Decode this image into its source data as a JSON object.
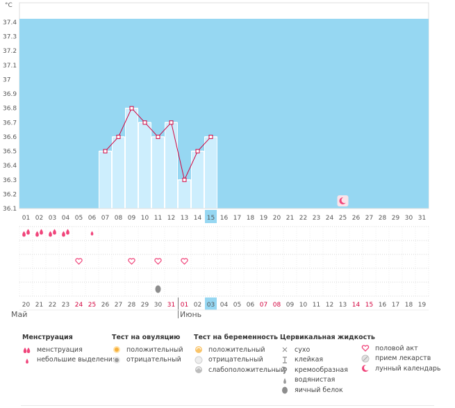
{
  "axis": {
    "unit": "°C",
    "yticks": [
      "37.4",
      "37.3",
      "37.2",
      "37.1",
      "37",
      "36.9",
      "36.8",
      "36.7",
      "36.6",
      "36.5",
      "36.4",
      "36.3",
      "36.2",
      "36.1"
    ]
  },
  "cycle_days": [
    "01",
    "02",
    "03",
    "04",
    "05",
    "06",
    "07",
    "08",
    "09",
    "10",
    "11",
    "12",
    "13",
    "14",
    "15",
    "16",
    "17",
    "18",
    "19",
    "20",
    "21",
    "22",
    "23",
    "24",
    "25",
    "26",
    "27",
    "28",
    "29",
    "30",
    "31"
  ],
  "current_day_index": 14,
  "dates": [
    {
      "d": "20",
      "red": false
    },
    {
      "d": "21",
      "red": false
    },
    {
      "d": "22",
      "red": false
    },
    {
      "d": "23",
      "red": false
    },
    {
      "d": "24",
      "red": true
    },
    {
      "d": "25",
      "red": true
    },
    {
      "d": "26",
      "red": false
    },
    {
      "d": "27",
      "red": false
    },
    {
      "d": "28",
      "red": false
    },
    {
      "d": "29",
      "red": false
    },
    {
      "d": "30",
      "red": false
    },
    {
      "d": "31",
      "red": true
    },
    {
      "d": "01",
      "red": true
    },
    {
      "d": "02",
      "red": false
    },
    {
      "d": "03",
      "red": false
    },
    {
      "d": "04",
      "red": false
    },
    {
      "d": "05",
      "red": false
    },
    {
      "d": "06",
      "red": false
    },
    {
      "d": "07",
      "red": true
    },
    {
      "d": "08",
      "red": true
    },
    {
      "d": "09",
      "red": false
    },
    {
      "d": "10",
      "red": false
    },
    {
      "d": "11",
      "red": false
    },
    {
      "d": "12",
      "red": false
    },
    {
      "d": "13",
      "red": false
    },
    {
      "d": "14",
      "red": true
    },
    {
      "d": "15",
      "red": true
    },
    {
      "d": "16",
      "red": false
    },
    {
      "d": "17",
      "red": false
    },
    {
      "d": "18",
      "red": false
    },
    {
      "d": "19",
      "red": false
    }
  ],
  "months": {
    "may": "Май",
    "june": "Июнь"
  },
  "chart_data": {
    "type": "line",
    "ylabel": "°C",
    "ylim": [
      36.1,
      37.4
    ],
    "x": [
      7,
      8,
      9,
      10,
      11,
      12,
      13,
      14,
      15
    ],
    "values": [
      36.5,
      36.6,
      36.8,
      36.7,
      36.6,
      36.7,
      36.3,
      36.5,
      36.6
    ],
    "moon_day": 25
  },
  "marks": {
    "menstruation": [
      1,
      2,
      3,
      4
    ],
    "spotting": [
      6
    ],
    "intercourse": [
      5,
      9,
      11,
      13
    ],
    "cervical_eggwhite": [
      11
    ]
  },
  "legend": {
    "menstr": {
      "title": "Менструация",
      "items": [
        "менструация",
        "небольшие выделения"
      ]
    },
    "ovul": {
      "title": "Тест на овуляцию",
      "items": [
        "положительный",
        "отрицательный"
      ]
    },
    "preg": {
      "title": "Тест на беременность",
      "items": [
        "положительный",
        "отрицательный",
        "слабоположительный"
      ]
    },
    "cerv": {
      "title": "Цервикальная жидкость",
      "items": [
        "сухо",
        "клейкая",
        "кремообразная",
        "водянистая",
        "яичный белок"
      ]
    },
    "other": {
      "items": [
        "половой акт",
        "прием лекарств",
        "лунный календарь"
      ]
    }
  },
  "colors": {
    "sky": "#96d7f2",
    "bar": "#cdeefd",
    "line": "#d2003c",
    "accent": "#f0457b",
    "grid": "#d6d6d6"
  }
}
